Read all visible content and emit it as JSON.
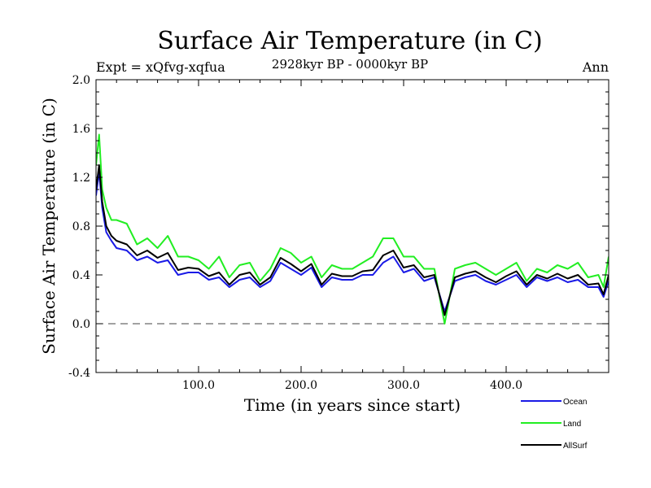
{
  "chart_data": {
    "type": "line",
    "title": "Surface Air Temperature (in C)",
    "subtitle": "2928kyr BP - 0000kyr BP",
    "expt_label": "Expt = xQfvg-xqfua",
    "period_label": "Ann",
    "xlabel": "Time (in years since start)",
    "ylabel": "Surface Air Temperature (in C)",
    "xlim": [
      0,
      500
    ],
    "ylim": [
      -0.4,
      2.0
    ],
    "xticks": [
      100,
      200,
      300,
      400
    ],
    "xtick_labels": [
      "100.0",
      "200.0",
      "300.0",
      "400.0"
    ],
    "yticks": [
      -0.4,
      0.0,
      0.4,
      0.8,
      1.2,
      1.6,
      2.0
    ],
    "ytick_labels": [
      "-0.4",
      "0.0",
      "0.4",
      "0.8",
      "1.2",
      "1.6",
      "2.0"
    ],
    "reference_line": 0.0,
    "legend_position": "bottom-right",
    "series": [
      {
        "name": "Ocean",
        "color": "#1a1ae6",
        "x": [
          0,
          3,
          6,
          10,
          15,
          20,
          30,
          40,
          50,
          60,
          70,
          80,
          90,
          100,
          110,
          120,
          130,
          140,
          150,
          160,
          170,
          180,
          190,
          200,
          210,
          220,
          230,
          240,
          250,
          260,
          270,
          280,
          290,
          300,
          310,
          320,
          330,
          340,
          350,
          360,
          370,
          380,
          390,
          400,
          410,
          420,
          430,
          440,
          450,
          460,
          470,
          480,
          490,
          495,
          500
        ],
        "values": [
          1.05,
          1.25,
          0.95,
          0.75,
          0.68,
          0.62,
          0.6,
          0.52,
          0.55,
          0.5,
          0.52,
          0.4,
          0.42,
          0.42,
          0.36,
          0.38,
          0.3,
          0.36,
          0.38,
          0.3,
          0.35,
          0.5,
          0.45,
          0.4,
          0.46,
          0.3,
          0.38,
          0.36,
          0.36,
          0.4,
          0.4,
          0.5,
          0.55,
          0.42,
          0.45,
          0.35,
          0.38,
          0.1,
          0.35,
          0.38,
          0.4,
          0.35,
          0.32,
          0.36,
          0.4,
          0.3,
          0.38,
          0.35,
          0.38,
          0.34,
          0.36,
          0.3,
          0.3,
          0.22,
          0.35
        ]
      },
      {
        "name": "Land",
        "color": "#22ee22",
        "x": [
          0,
          3,
          6,
          10,
          15,
          20,
          30,
          40,
          50,
          60,
          70,
          80,
          90,
          100,
          110,
          120,
          130,
          140,
          150,
          160,
          170,
          180,
          190,
          200,
          210,
          220,
          230,
          240,
          250,
          260,
          270,
          280,
          290,
          300,
          310,
          320,
          330,
          340,
          350,
          360,
          370,
          380,
          390,
          400,
          410,
          420,
          430,
          440,
          450,
          460,
          470,
          480,
          490,
          495,
          500
        ],
        "values": [
          1.3,
          1.55,
          1.1,
          0.95,
          0.85,
          0.85,
          0.82,
          0.65,
          0.7,
          0.62,
          0.72,
          0.55,
          0.55,
          0.52,
          0.45,
          0.55,
          0.38,
          0.48,
          0.5,
          0.35,
          0.45,
          0.62,
          0.58,
          0.5,
          0.55,
          0.38,
          0.48,
          0.45,
          0.45,
          0.5,
          0.55,
          0.7,
          0.7,
          0.55,
          0.55,
          0.45,
          0.45,
          0.0,
          0.45,
          0.48,
          0.5,
          0.45,
          0.4,
          0.45,
          0.5,
          0.35,
          0.45,
          0.42,
          0.48,
          0.45,
          0.5,
          0.38,
          0.4,
          0.3,
          0.55
        ]
      },
      {
        "name": "AllSurf",
        "color": "#000000",
        "x": [
          0,
          3,
          6,
          10,
          15,
          20,
          30,
          40,
          50,
          60,
          70,
          80,
          90,
          100,
          110,
          120,
          130,
          140,
          150,
          160,
          170,
          180,
          190,
          200,
          210,
          220,
          230,
          240,
          250,
          260,
          270,
          280,
          290,
          300,
          310,
          320,
          330,
          340,
          350,
          360,
          370,
          380,
          390,
          400,
          410,
          420,
          430,
          440,
          450,
          460,
          470,
          480,
          490,
          495,
          500
        ],
        "values": [
          1.1,
          1.3,
          1.0,
          0.8,
          0.72,
          0.68,
          0.65,
          0.56,
          0.6,
          0.54,
          0.58,
          0.44,
          0.46,
          0.45,
          0.39,
          0.42,
          0.32,
          0.4,
          0.42,
          0.32,
          0.38,
          0.54,
          0.49,
          0.43,
          0.49,
          0.32,
          0.41,
          0.39,
          0.39,
          0.43,
          0.44,
          0.56,
          0.6,
          0.46,
          0.48,
          0.38,
          0.4,
          0.07,
          0.38,
          0.41,
          0.43,
          0.38,
          0.34,
          0.39,
          0.43,
          0.32,
          0.4,
          0.37,
          0.41,
          0.37,
          0.4,
          0.32,
          0.33,
          0.24,
          0.4
        ]
      }
    ]
  }
}
